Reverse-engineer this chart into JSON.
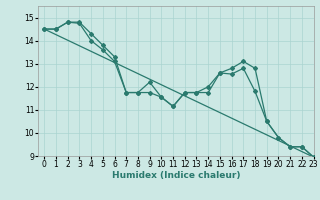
{
  "xlabel": "Humidex (Indice chaleur)",
  "bg_color": "#cce8e4",
  "grid_color": "#aad4d0",
  "line_color": "#2a7a6e",
  "xlim": [
    -0.5,
    23
  ],
  "ylim": [
    9,
    15.5
  ],
  "yticks": [
    9,
    10,
    11,
    12,
    13,
    14,
    15
  ],
  "xticks": [
    0,
    1,
    2,
    3,
    4,
    5,
    6,
    7,
    8,
    9,
    10,
    11,
    12,
    13,
    14,
    15,
    16,
    17,
    18,
    19,
    20,
    21,
    22,
    23
  ],
  "line1_x": [
    0,
    1,
    2,
    3,
    4,
    5,
    6,
    7,
    8,
    9,
    10,
    11,
    12,
    13,
    14,
    15,
    16,
    17,
    18,
    19,
    20,
    21,
    22,
    23
  ],
  "line1_y": [
    14.5,
    14.5,
    14.8,
    14.8,
    14.3,
    13.8,
    13.3,
    11.75,
    11.75,
    11.75,
    11.55,
    11.15,
    11.75,
    11.75,
    12.0,
    12.6,
    12.8,
    13.1,
    12.8,
    10.5,
    9.8,
    9.4,
    9.4,
    8.95
  ],
  "line2_x": [
    0,
    1,
    2,
    3,
    4,
    5,
    6,
    7,
    8,
    9,
    10,
    11,
    12,
    13,
    14,
    15,
    16,
    17,
    18,
    19,
    20,
    21,
    22,
    23
  ],
  "line2_y": [
    14.5,
    14.5,
    14.8,
    14.75,
    14.0,
    13.6,
    13.1,
    11.75,
    11.75,
    12.2,
    11.55,
    11.15,
    11.75,
    11.75,
    11.75,
    12.6,
    12.55,
    12.8,
    11.8,
    10.5,
    9.8,
    9.4,
    9.4,
    8.95
  ],
  "line3_x": [
    0,
    23
  ],
  "line3_y": [
    14.5,
    8.95
  ],
  "tick_fontsize": 5.5,
  "xlabel_fontsize": 6.5
}
